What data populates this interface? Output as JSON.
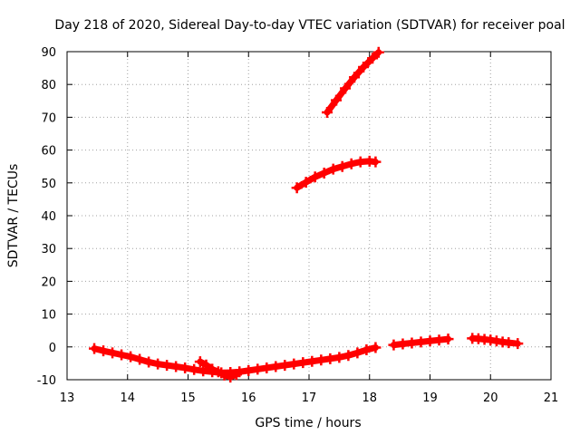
{
  "chart_data": {
    "type": "scatter",
    "title": "Day 218 of 2020, Sidereal Day-to-day VTEC variation (SDTVAR) for receiver poal",
    "xlabel": "GPS time / hours",
    "ylabel": "SDTVAR / TECUs",
    "xlim": [
      13,
      21
    ],
    "ylim": [
      -10,
      90
    ],
    "xticks": [
      "13",
      "14",
      "15",
      "16",
      "17",
      "18",
      "19",
      "20",
      "21"
    ],
    "yticks": [
      "-10",
      "0",
      "10",
      "20",
      "30",
      "40",
      "50",
      "60",
      "70",
      "80",
      "90"
    ],
    "grid": true,
    "marker_color": "#ff0000",
    "marker_shape": "plus",
    "series": [
      {
        "x": [
          13.45,
          13.6,
          13.75,
          13.9,
          14.05,
          14.2,
          14.35,
          14.5,
          14.65,
          14.8,
          14.95,
          15.1,
          15.25,
          15.4,
          15.55,
          15.7,
          15.85,
          16.0,
          16.15,
          16.3,
          16.45,
          16.6,
          16.75,
          16.9,
          17.05,
          17.2,
          17.35,
          17.5,
          17.65,
          17.8,
          17.95,
          18.1
        ],
        "y": [
          -0.5,
          -1.2,
          -1.8,
          -2.4,
          -3.0,
          -3.8,
          -4.6,
          -5.2,
          -5.6,
          -6.0,
          -6.4,
          -6.9,
          -7.3,
          -7.6,
          -7.9,
          -7.8,
          -7.6,
          -7.2,
          -6.8,
          -6.4,
          -6.0,
          -5.6,
          -5.2,
          -4.8,
          -4.4,
          -4.0,
          -3.6,
          -3.2,
          -2.6,
          -1.8,
          -0.9,
          -0.2
        ]
      },
      {
        "x": [
          15.2,
          15.3,
          15.4,
          15.5,
          15.6,
          15.7,
          15.8
        ],
        "y": [
          -4.5,
          -5.5,
          -6.8,
          -7.6,
          -8.6,
          -9.2,
          -8.4
        ]
      },
      {
        "x": [
          18.4,
          18.55,
          18.7,
          18.85,
          19.0,
          19.15,
          19.3
        ],
        "y": [
          0.6,
          0.9,
          1.2,
          1.5,
          1.8,
          2.1,
          2.4
        ]
      },
      {
        "x": [
          19.7,
          19.8,
          19.9,
          20.0,
          20.1,
          20.2,
          20.3,
          20.45
        ],
        "y": [
          2.6,
          2.5,
          2.3,
          2.1,
          1.8,
          1.5,
          1.3,
          1.0
        ]
      },
      {
        "x": [
          16.8,
          16.95,
          17.1,
          17.25,
          17.4,
          17.55,
          17.7,
          17.85,
          18.0,
          18.1
        ],
        "y": [
          48.5,
          50.2,
          51.8,
          53.0,
          54.2,
          55.0,
          55.8,
          56.4,
          56.6,
          56.4
        ]
      },
      {
        "x": [
          17.3,
          17.45,
          17.6,
          17.75,
          17.9,
          18.05,
          18.15
        ],
        "y": [
          71.5,
          75.2,
          78.8,
          82.2,
          85.3,
          88.0,
          89.8
        ]
      }
    ]
  }
}
